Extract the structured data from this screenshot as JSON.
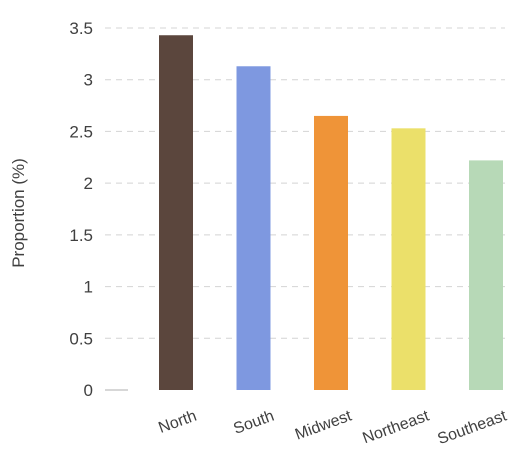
{
  "chart_data": {
    "type": "bar",
    "title": "",
    "xlabel": "",
    "ylabel": "Proportion (%)",
    "categories": [
      "North",
      "South",
      "Midwest",
      "Northeast",
      "Southeast"
    ],
    "values": [
      3.43,
      3.13,
      2.65,
      2.53,
      2.22
    ],
    "colors": [
      "#5b463d",
      "#7e98e0",
      "#ef9438",
      "#ebe06a",
      "#b7d9b7"
    ],
    "ylim": [
      0,
      3.5
    ],
    "yticks": [
      0,
      0.5,
      1,
      1.5,
      2,
      2.5,
      3,
      3.5
    ],
    "ytick_labels": [
      "0",
      "0.5",
      "1",
      "1.5",
      "2",
      "2.5",
      "3",
      "3.5"
    ],
    "grid": true,
    "legend": "none"
  }
}
